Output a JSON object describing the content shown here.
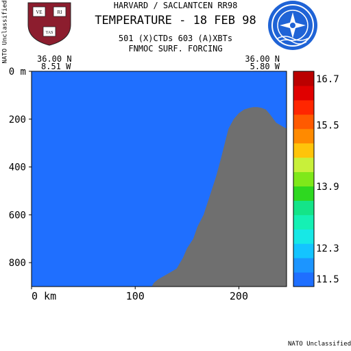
{
  "header": {
    "line1": "HARVARD / SACLANTCEN RR98",
    "line2": "TEMPERATURE - 18 FEB 98",
    "line3": "501 (X)CTDs   603 (A)XBTs",
    "line4": "FNMOC SURF. FORCING",
    "side_marking": "NATO Unclassified",
    "footer_marking": "NATO Unclassified"
  },
  "section": {
    "left_lat": "36.00 N",
    "left_lon": "8.51 W",
    "right_lat": "36.00 N",
    "right_lon": "5.80 W"
  },
  "logos": {
    "harvard_shield_letters": [
      "VE",
      "RI",
      "TAS"
    ],
    "shield_color": "#8c1d2e",
    "nato_color": "#1f63d6"
  },
  "chart_data": {
    "type": "heatmap",
    "title": "TEMPERATURE - 18 FEB 98",
    "xlabel": "km",
    "ylabel": "m",
    "xlim": [
      0,
      246
    ],
    "ylim": [
      900,
      0
    ],
    "x_ticks": [
      0,
      100,
      200
    ],
    "x_tick_labels": [
      "0 km",
      "100",
      "200"
    ],
    "y_ticks": [
      0,
      200,
      400,
      600,
      800
    ],
    "y_tick_labels": [
      "0 m",
      "200",
      "400",
      "600",
      "800"
    ],
    "colorbar": {
      "levels": [
        11.3,
        11.7,
        12.1,
        12.5,
        12.9,
        13.3,
        13.7,
        14.1,
        14.5,
        14.9,
        15.3,
        15.7,
        16.1,
        16.5,
        16.9
      ],
      "colors": [
        "#1f6fff",
        "#1c95ff",
        "#14c4ff",
        "#17e8e6",
        "#15f0b4",
        "#14e488",
        "#2ed820",
        "#7fe81a",
        "#c8f03a",
        "#ffc40a",
        "#ff8a00",
        "#ff5a00",
        "#ff2600",
        "#e00000",
        "#bb0000"
      ],
      "tick_values": [
        16.7,
        15.5,
        13.9,
        12.3,
        11.5
      ],
      "tick_labels": [
        "16.7",
        "15.5",
        "13.9",
        "12.3",
        "11.5"
      ]
    },
    "bathymetry": {
      "x": [
        116,
        118,
        122,
        130,
        140,
        146,
        150,
        156,
        160,
        166,
        172,
        178,
        183,
        187,
        190,
        195,
        200,
        205,
        210,
        214,
        218,
        222,
        226,
        230,
        236,
        240,
        244,
        246
      ],
      "depth": [
        900,
        885,
        870,
        850,
        825,
        780,
        740,
        700,
        650,
        600,
        520,
        440,
        360,
        290,
        240,
        200,
        175,
        160,
        153,
        150,
        150,
        153,
        160,
        180,
        215,
        225,
        235,
        240
      ]
    },
    "land_color": "#6f6f6f"
  }
}
